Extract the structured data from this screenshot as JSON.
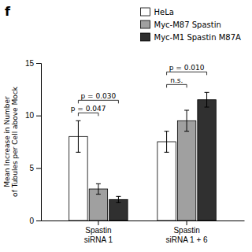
{
  "chart_data": {
    "type": "bar",
    "title": "f",
    "ylabel": "Mean Increase in Number\nof Tubules per Cell above Mock",
    "categories": [
      "Spastin\nsiRNA 1",
      "Spastin\nsiRNA 1 + 6"
    ],
    "series": [
      {
        "name": "HeLa",
        "color": "white",
        "values": [
          8.0,
          7.5
        ],
        "errors": [
          1.5,
          1.0
        ]
      },
      {
        "name": "Myc-M87 Spastin",
        "color": "#a0a0a0",
        "values": [
          3.0,
          9.5
        ],
        "errors": [
          0.5,
          1.0
        ]
      },
      {
        "name": "Myc-M1 Spastin M87A",
        "color": "#303030",
        "values": [
          2.0,
          11.5
        ],
        "errors": [
          0.3,
          0.7
        ]
      }
    ],
    "ylim": [
      0,
      15
    ],
    "yticks": [
      0,
      5,
      10,
      15
    ],
    "grid": false,
    "legend": "upper right",
    "annotations": [
      {
        "text": "p = 0.047",
        "category": "Spastin\nsiRNA 1",
        "between": [
          "HeLa",
          "Myc-M87 Spastin"
        ]
      },
      {
        "text": "p = 0.030",
        "category": "Spastin\nsiRNA 1",
        "between": [
          "HeLa",
          "Myc-M1 Spastin M87A"
        ]
      },
      {
        "text": "n.s.",
        "category": "Spastin\nsiRNA 1 + 6",
        "between": [
          "HeLa",
          "Myc-M87 Spastin"
        ]
      },
      {
        "text": "p = 0.010",
        "category": "Spastin\nsiRNA 1 + 6",
        "between": [
          "HeLa",
          "Myc-M1 Spastin M87A"
        ]
      }
    ]
  }
}
